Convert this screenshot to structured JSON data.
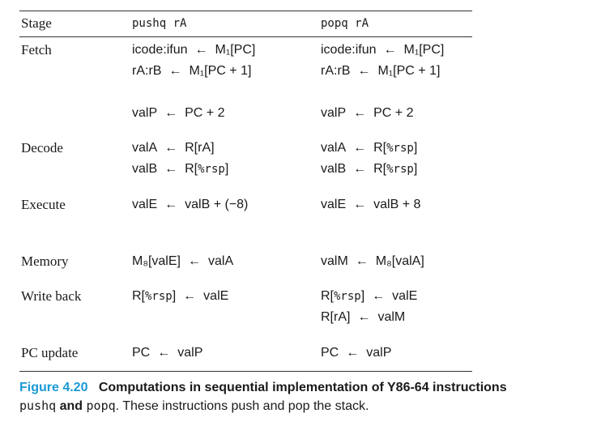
{
  "table": {
    "headers": {
      "stage": "Stage",
      "col1": "pushq rA",
      "col2": "popq rA"
    },
    "arrow": "←",
    "rows": [
      {
        "stage": "Fetch",
        "col1": [
          {
            "lhs": "icode:ifun",
            "rhs": "M₁[PC]"
          },
          {
            "lhs": "rA:rB",
            "rhs": "M₁[PC + 1]"
          },
          {
            "lhs": "",
            "rhs": ""
          },
          {
            "lhs": "valP",
            "rhs": "PC + 2"
          }
        ],
        "col2": [
          {
            "lhs": "icode:ifun",
            "rhs": "M₁[PC]"
          },
          {
            "lhs": "rA:rB",
            "rhs": "M₁[PC + 1]"
          },
          {
            "lhs": "",
            "rhs": ""
          },
          {
            "lhs": "valP",
            "rhs": "PC + 2"
          }
        ]
      },
      {
        "stage": "Decode",
        "col1": [
          {
            "lhs": "valA",
            "rhs": "R[rA]"
          },
          {
            "lhs": "valB",
            "rhs": "R[%rsp]"
          }
        ],
        "col2": [
          {
            "lhs": "valA",
            "rhs": "R[%rsp]"
          },
          {
            "lhs": "valB",
            "rhs": "R[%rsp]"
          }
        ]
      },
      {
        "stage": "Execute",
        "col1": [
          {
            "lhs": "valE",
            "rhs": "valB + (−8)"
          }
        ],
        "col2": [
          {
            "lhs": "valE",
            "rhs": "valB + 8"
          }
        ]
      },
      {
        "stage": "Memory",
        "col1": [
          {
            "lhs": "M₈[valE]",
            "rhs": "valA"
          }
        ],
        "col2": [
          {
            "lhs": "valM",
            "rhs": "M₈[valA]"
          }
        ]
      },
      {
        "stage": "Write back",
        "col1": [
          {
            "lhs": "R[%rsp]",
            "rhs": "valE"
          }
        ],
        "col2": [
          {
            "lhs": "R[%rsp]",
            "rhs": "valE"
          },
          {
            "lhs": "R[rA]",
            "rhs": "valM"
          }
        ]
      },
      {
        "stage": "PC update",
        "col1": [
          {
            "lhs": "PC",
            "rhs": "valP"
          }
        ],
        "col2": [
          {
            "lhs": "PC",
            "rhs": "valP"
          }
        ]
      }
    ]
  },
  "caption": {
    "label": "Figure 4.20",
    "title": "Computations in sequential implementation of Y86-64 instructions",
    "code1": "pushq",
    "and_word": "and",
    "code2": "popq",
    "rest": ". These instructions push and pop the stack."
  }
}
